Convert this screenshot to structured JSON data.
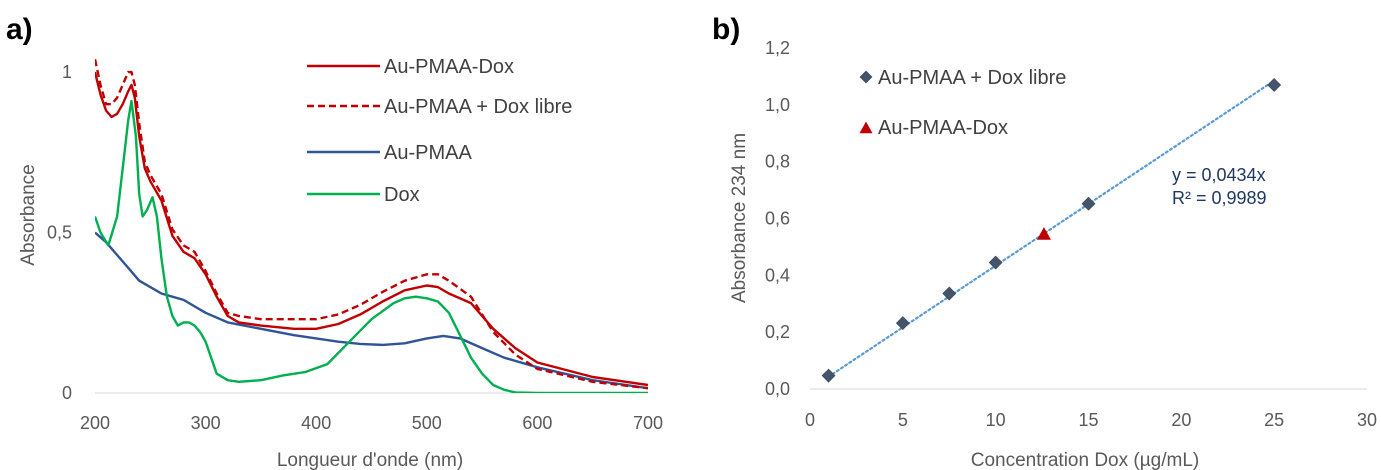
{
  "chart_data": [
    {
      "panel_label": "a)",
      "type": "line",
      "title": "",
      "xlabel": "Longueur d'onde (nm)",
      "ylabel": "Absorbance",
      "xlim": [
        200,
        700
      ],
      "ylim": [
        0,
        1.1
      ],
      "x_ticks": [
        "200",
        "300",
        "400",
        "500",
        "600",
        "700"
      ],
      "y_ticks": [
        {
          "value": 0,
          "label": "0"
        },
        {
          "value": 0.5,
          "label": "0,5"
        },
        {
          "value": 1,
          "label": "1"
        }
      ],
      "legend_position": "top-right",
      "series": [
        {
          "name": "Au-PMAA-Dox",
          "color": "#c00000",
          "dash": "solid",
          "x": [
            200,
            205,
            210,
            215,
            220,
            225,
            230,
            233,
            236,
            240,
            245,
            250,
            255,
            260,
            270,
            280,
            290,
            300,
            310,
            320,
            330,
            350,
            380,
            400,
            420,
            440,
            460,
            480,
            500,
            510,
            520,
            540,
            560,
            580,
            600,
            650,
            700
          ],
          "y": [
            1.0,
            0.93,
            0.88,
            0.86,
            0.87,
            0.9,
            0.94,
            0.96,
            0.92,
            0.8,
            0.7,
            0.66,
            0.63,
            0.6,
            0.49,
            0.44,
            0.42,
            0.37,
            0.3,
            0.24,
            0.22,
            0.21,
            0.2,
            0.2,
            0.215,
            0.245,
            0.285,
            0.32,
            0.335,
            0.33,
            0.31,
            0.28,
            0.2,
            0.14,
            0.095,
            0.05,
            0.025
          ]
        },
        {
          "name": "Au-PMAA + Dox libre",
          "color": "#c00000",
          "dash": "dashed",
          "x": [
            200,
            205,
            210,
            215,
            220,
            225,
            230,
            233,
            236,
            240,
            245,
            250,
            255,
            260,
            270,
            280,
            290,
            300,
            310,
            320,
            330,
            350,
            380,
            400,
            420,
            440,
            460,
            480,
            500,
            510,
            520,
            540,
            560,
            580,
            600,
            650,
            700
          ],
          "y": [
            1.04,
            0.96,
            0.9,
            0.9,
            0.92,
            0.96,
            1.0,
            1.0,
            0.96,
            0.84,
            0.72,
            0.68,
            0.65,
            0.62,
            0.51,
            0.46,
            0.44,
            0.38,
            0.31,
            0.25,
            0.24,
            0.23,
            0.23,
            0.23,
            0.245,
            0.275,
            0.315,
            0.35,
            0.37,
            0.37,
            0.35,
            0.3,
            0.19,
            0.12,
            0.075,
            0.035,
            0.015
          ]
        },
        {
          "name": "Au-PMAA",
          "color": "#2f5597",
          "dash": "solid",
          "x": [
            200,
            210,
            220,
            230,
            240,
            250,
            260,
            270,
            280,
            300,
            320,
            350,
            380,
            400,
            420,
            440,
            460,
            480,
            500,
            515,
            530,
            550,
            570,
            600,
            650,
            700
          ],
          "y": [
            0.5,
            0.47,
            0.43,
            0.39,
            0.35,
            0.33,
            0.31,
            0.3,
            0.29,
            0.25,
            0.22,
            0.2,
            0.18,
            0.17,
            0.16,
            0.153,
            0.15,
            0.155,
            0.17,
            0.178,
            0.17,
            0.14,
            0.11,
            0.08,
            0.04,
            0.015
          ]
        },
        {
          "name": "Dox",
          "color": "#00b050",
          "dash": "solid",
          "x": [
            200,
            205,
            212,
            220,
            225,
            230,
            233,
            237,
            240,
            243,
            247,
            252,
            256,
            260,
            265,
            270,
            275,
            280,
            285,
            290,
            295,
            300,
            310,
            320,
            330,
            350,
            370,
            390,
            410,
            430,
            450,
            470,
            480,
            490,
            500,
            510,
            520,
            530,
            540,
            550,
            560,
            570,
            580,
            600,
            650,
            700
          ],
          "y": [
            0.55,
            0.5,
            0.46,
            0.55,
            0.7,
            0.85,
            0.91,
            0.8,
            0.62,
            0.55,
            0.57,
            0.61,
            0.55,
            0.42,
            0.3,
            0.24,
            0.21,
            0.22,
            0.22,
            0.21,
            0.19,
            0.16,
            0.06,
            0.04,
            0.035,
            0.04,
            0.055,
            0.065,
            0.09,
            0.16,
            0.23,
            0.28,
            0.295,
            0.3,
            0.295,
            0.285,
            0.25,
            0.18,
            0.11,
            0.06,
            0.025,
            0.01,
            0.002,
            0.0,
            0.0,
            0.0
          ]
        }
      ]
    },
    {
      "panel_label": "b)",
      "type": "scatter",
      "title": "",
      "xlabel": "Concentration Dox (µg/mL)",
      "ylabel": "Absorbance 234 nm",
      "xlim": [
        0,
        30
      ],
      "ylim": [
        0,
        1.2
      ],
      "x_ticks": [
        "0",
        "5",
        "10",
        "15",
        "20",
        "25",
        "30"
      ],
      "y_ticks": [
        "0,0",
        "0,2",
        "0,4",
        "0,6",
        "0,8",
        "1,0",
        "1,2"
      ],
      "legend_position": "top-left",
      "series": [
        {
          "name": "Au-PMAA + Dox libre",
          "color": "#44546a",
          "marker": "diamond",
          "x": [
            1,
            5,
            7.5,
            10,
            15,
            25
          ],
          "y": [
            0.047,
            0.232,
            0.336,
            0.445,
            0.652,
            1.07
          ]
        },
        {
          "name": "Au-PMAA-Dox",
          "color": "#c00000",
          "marker": "triangle",
          "x": [
            12.6
          ],
          "y": [
            0.545
          ]
        }
      ],
      "trendline": {
        "slope": 0.0434,
        "x_range": [
          1,
          25
        ],
        "color": "#5b9bd5",
        "style": "dotted",
        "equation": "y = 0,0434x",
        "r2": "R² = 0,9989"
      }
    }
  ]
}
